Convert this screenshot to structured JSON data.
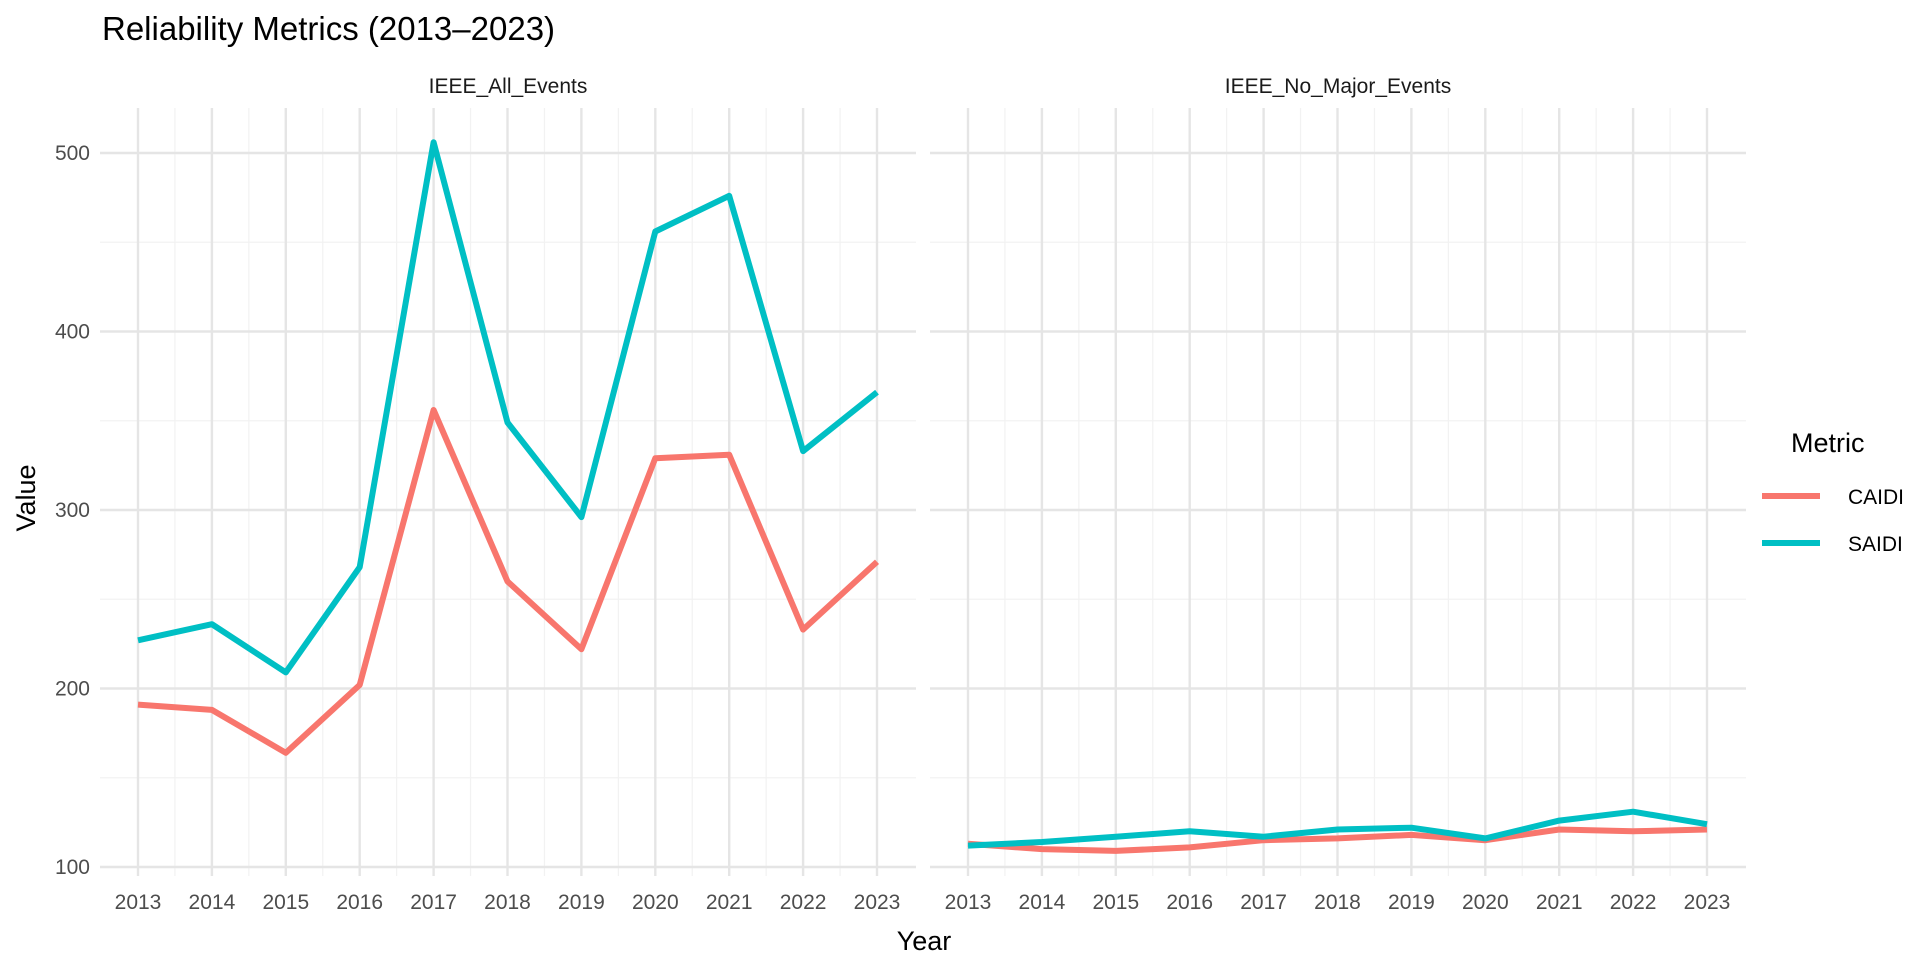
{
  "chart_data": {
    "type": "line",
    "title": "Reliability Metrics (2013–2023)",
    "xlabel": "Year",
    "ylabel": "Value",
    "ylim": [
      100,
      520
    ],
    "y_ticks": [
      100,
      200,
      300,
      400,
      500
    ],
    "x": [
      2013,
      2014,
      2015,
      2016,
      2017,
      2018,
      2019,
      2020,
      2021,
      2022,
      2023
    ],
    "legend": {
      "title": "Metric",
      "position": "right"
    },
    "grid": true,
    "colors": {
      "CAIDI": "#F8766D",
      "SAIDI": "#00BFC4"
    },
    "panels": [
      {
        "name": "IEEE_All_Events",
        "series": [
          {
            "name": "CAIDI",
            "values": [
              191,
              188,
              164,
              202,
              356,
              260,
              222,
              329,
              331,
              233,
              271
            ]
          },
          {
            "name": "SAIDI",
            "values": [
              227,
              236,
              209,
              268,
              506,
              349,
              296,
              456,
              476,
              333,
              366
            ]
          }
        ]
      },
      {
        "name": "IEEE_No_Major_Events",
        "series": [
          {
            "name": "CAIDI",
            "values": [
              113,
              110,
              109,
              111,
              115,
              116,
              118,
              115,
              121,
              120,
              121
            ]
          },
          {
            "name": "SAIDI",
            "values": [
              112,
              114,
              117,
              120,
              117,
              121,
              122,
              116,
              126,
              131,
              124
            ]
          }
        ]
      }
    ]
  }
}
